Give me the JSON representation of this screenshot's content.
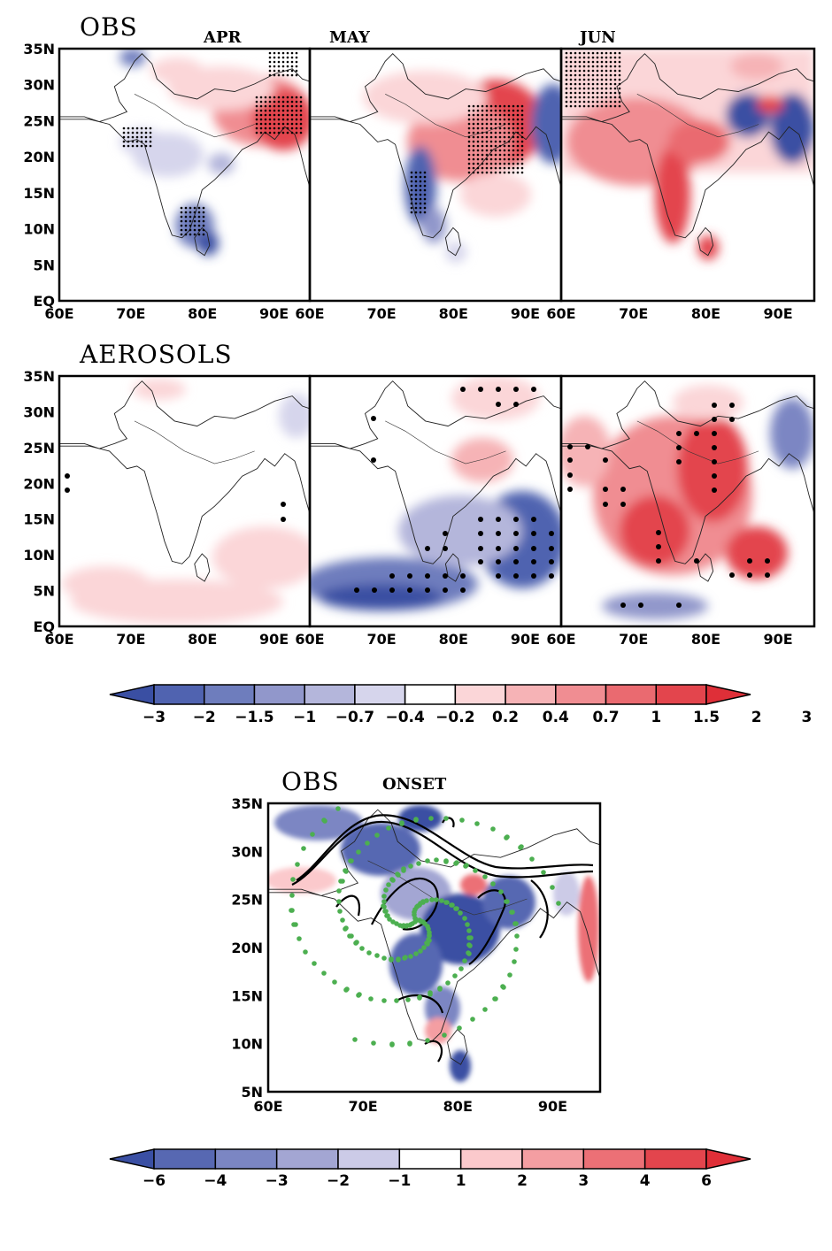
{
  "figure": {
    "top_section": {
      "rows": [
        {
          "label": "OBS",
          "panels": [
            {
              "month": "APR"
            },
            {
              "month": "MAY"
            },
            {
              "month": "JUN"
            }
          ]
        },
        {
          "label": "AEROSOLS",
          "panels": [
            {
              "month": ""
            },
            {
              "month": ""
            },
            {
              "month": ""
            }
          ]
        }
      ],
      "lat_ticks": [
        "35N",
        "30N",
        "25N",
        "20N",
        "15N",
        "10N",
        "5N",
        "EQ"
      ],
      "lon_ticks": [
        "60E",
        "70E",
        "80E",
        "90E"
      ],
      "colorbar": {
        "levels": [
          "-3",
          "-2",
          "-1.5",
          "-1",
          "-0.7",
          "-0.4",
          "-0.2",
          "0.2",
          "0.4",
          "0.7",
          "1",
          "1.5",
          "2",
          "3"
        ],
        "colors": [
          "#3a4fa3",
          "#5063b0",
          "#6e7dbd",
          "#9197cb",
          "#b4b6db",
          "#d6d5ec",
          "#ffffff",
          "#fbd6d8",
          "#f6b3b6",
          "#f08d92",
          "#ea6a70",
          "#e3454d",
          "#df2f38"
        ]
      }
    },
    "bottom_section": {
      "label": "OBS",
      "title": "ONSET",
      "lat_ticks": [
        "35N",
        "30N",
        "25N",
        "20N",
        "15N",
        "10N",
        "5N"
      ],
      "lon_ticks": [
        "60E",
        "70E",
        "80E",
        "90E"
      ],
      "colorbar": {
        "levels": [
          "-6",
          "-4",
          "-3",
          "-2",
          "-1",
          "1",
          "2",
          "3",
          "4",
          "6"
        ],
        "colors": [
          "#3a4fa3",
          "#5768b2",
          "#7b86c3",
          "#a3a6d3",
          "#cccbe7",
          "#ffffff",
          "#fbc9cc",
          "#f49ea2",
          "#ec7076",
          "#e3454d",
          "#df2f38"
        ]
      }
    },
    "colors": {
      "positive": "#e3454d",
      "negative": "#3a4fa3",
      "significance_dots": "#000000",
      "onset_dots": "#4caf50"
    }
  }
}
